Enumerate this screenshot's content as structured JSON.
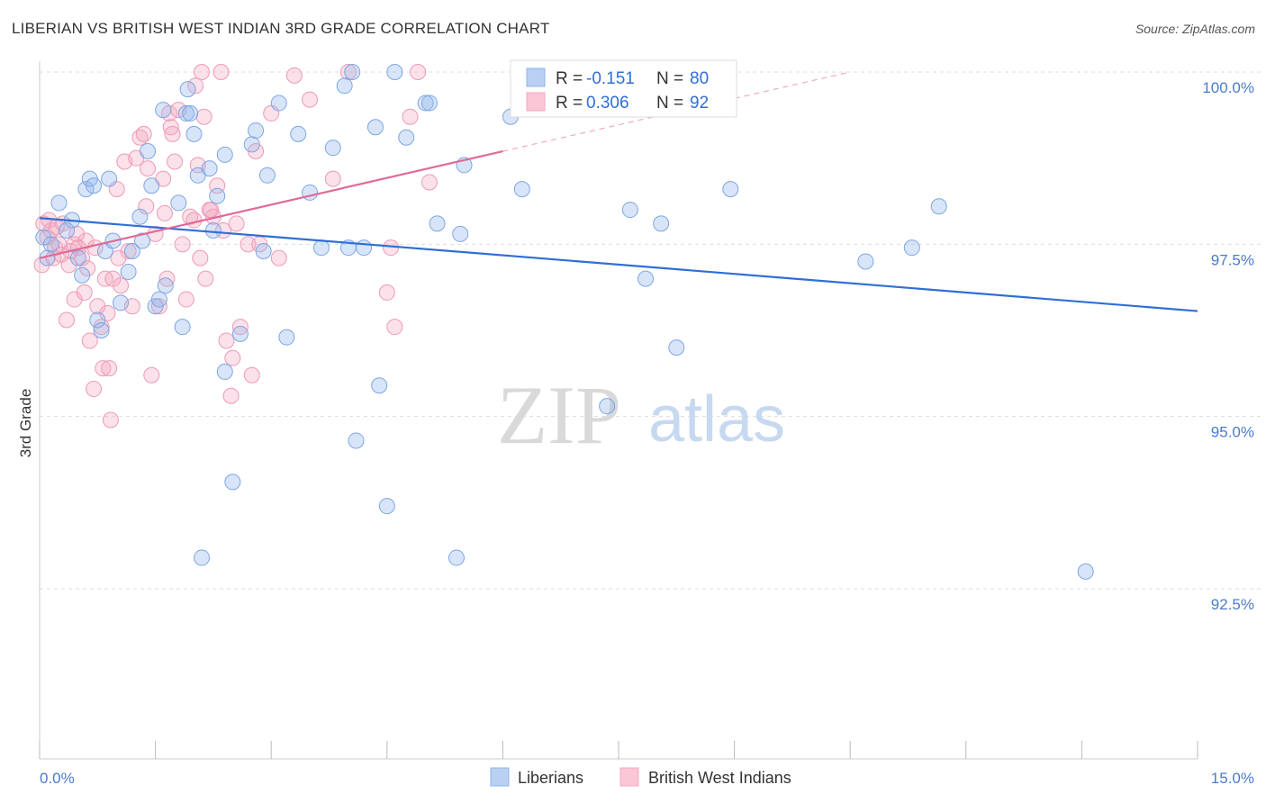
{
  "title": "LIBERIAN VS BRITISH WEST INDIAN 3RD GRADE CORRELATION CHART",
  "source": "Source: ZipAtlas.com",
  "watermark": {
    "zip": "ZIP",
    "atlas": "atlas"
  },
  "legend": {
    "rows": [
      {
        "r_label": "R =",
        "r_value": "-0.151",
        "n_label": "N =",
        "n_value": "80"
      },
      {
        "r_label": "R =",
        "r_value": "0.306",
        "n_label": "N =",
        "n_value": "92"
      }
    ]
  },
  "bottom_legend": [
    "Liberians",
    "British West Indians"
  ],
  "colors": {
    "blue": "#8fb4ea",
    "blue_line": "#2f6fd6",
    "pink": "#f4a8c0",
    "pink_line": "#e06a98",
    "tick_text": "#4a7bd0",
    "grid": "#dddddd"
  },
  "chart_data": {
    "type": "scatter",
    "title": "LIBERIAN VS BRITISH WEST INDIAN 3RD GRADE CORRELATION CHART",
    "xlabel": "",
    "ylabel": "3rd Grade",
    "xlim": [
      0.0,
      15.0
    ],
    "ylim": [
      90.0,
      100.2
    ],
    "x_tick_labels": [
      "0.0%",
      "15.0%"
    ],
    "y_ticks": [
      92.5,
      95.0,
      97.5,
      100.0
    ],
    "y_tick_labels": [
      "92.5%",
      "95.0%",
      "97.5%",
      "100.0%"
    ],
    "grid": "horizontal dashed",
    "series": [
      {
        "name": "Liberians",
        "color": "#8fb4ea",
        "trend": {
          "x": [
            0.0,
            15.0
          ],
          "y": [
            97.88,
            96.53
          ]
        },
        "points": [
          [
            0.05,
            97.6
          ],
          [
            0.1,
            97.3
          ],
          [
            0.15,
            97.5
          ],
          [
            0.25,
            98.1
          ],
          [
            0.35,
            97.7
          ],
          [
            0.42,
            97.85
          ],
          [
            0.5,
            97.3
          ],
          [
            0.55,
            97.05
          ],
          [
            0.6,
            98.3
          ],
          [
            0.65,
            98.45
          ],
          [
            0.7,
            98.35
          ],
          [
            0.75,
            96.4
          ],
          [
            0.8,
            96.25
          ],
          [
            0.85,
            97.4
          ],
          [
            0.9,
            98.45
          ],
          [
            0.95,
            97.55
          ],
          [
            1.05,
            96.65
          ],
          [
            1.15,
            97.1
          ],
          [
            1.2,
            97.4
          ],
          [
            1.3,
            97.9
          ],
          [
            1.33,
            97.55
          ],
          [
            1.4,
            98.85
          ],
          [
            1.45,
            98.35
          ],
          [
            1.5,
            96.6
          ],
          [
            1.55,
            96.7
          ],
          [
            1.6,
            99.45
          ],
          [
            1.63,
            96.9
          ],
          [
            1.8,
            98.1
          ],
          [
            1.85,
            96.3
          ],
          [
            1.9,
            99.4
          ],
          [
            1.92,
            99.75
          ],
          [
            1.95,
            99.4
          ],
          [
            2.0,
            99.1
          ],
          [
            2.05,
            98.5
          ],
          [
            2.1,
            92.95
          ],
          [
            2.2,
            98.6
          ],
          [
            2.25,
            97.7
          ],
          [
            2.3,
            98.2
          ],
          [
            2.4,
            95.65
          ],
          [
            2.4,
            98.8
          ],
          [
            2.5,
            94.05
          ],
          [
            2.6,
            96.2
          ],
          [
            2.75,
            98.95
          ],
          [
            2.8,
            99.15
          ],
          [
            2.9,
            97.4
          ],
          [
            2.95,
            98.5
          ],
          [
            3.1,
            99.55
          ],
          [
            3.2,
            96.15
          ],
          [
            3.35,
            99.1
          ],
          [
            3.5,
            98.25
          ],
          [
            3.65,
            97.45
          ],
          [
            3.8,
            98.9
          ],
          [
            3.95,
            99.8
          ],
          [
            4.0,
            97.45
          ],
          [
            4.05,
            100.0
          ],
          [
            4.1,
            94.65
          ],
          [
            4.2,
            97.45
          ],
          [
            4.35,
            99.2
          ],
          [
            4.4,
            95.45
          ],
          [
            4.5,
            93.7
          ],
          [
            4.6,
            100.0
          ],
          [
            4.75,
            99.05
          ],
          [
            5.0,
            99.55
          ],
          [
            5.05,
            99.55
          ],
          [
            5.15,
            97.8
          ],
          [
            5.4,
            92.95
          ],
          [
            5.45,
            97.65
          ],
          [
            5.5,
            98.65
          ],
          [
            6.1,
            99.35
          ],
          [
            7.35,
            95.15
          ],
          [
            7.65,
            98.0
          ],
          [
            7.85,
            97.0
          ],
          [
            8.05,
            97.8
          ],
          [
            8.25,
            96.0
          ],
          [
            8.95,
            98.3
          ],
          [
            10.7,
            97.25
          ],
          [
            11.3,
            97.45
          ],
          [
            11.65,
            98.05
          ],
          [
            13.55,
            92.75
          ],
          [
            6.25,
            98.3
          ]
        ]
      },
      {
        "name": "British West Indians",
        "color": "#f4a8c0",
        "trend": {
          "x": [
            0.0,
            6.0
          ],
          "y": [
            97.3,
            98.85
          ]
        },
        "trend_dashed": {
          "x": [
            6.0,
            10.5
          ],
          "y": [
            98.85,
            100.0
          ]
        },
        "points": [
          [
            0.03,
            97.2
          ],
          [
            0.05,
            97.8
          ],
          [
            0.1,
            97.6
          ],
          [
            0.15,
            97.7
          ],
          [
            0.18,
            97.3
          ],
          [
            0.2,
            97.45
          ],
          [
            0.25,
            97.5
          ],
          [
            0.3,
            97.8
          ],
          [
            0.35,
            96.4
          ],
          [
            0.4,
            97.4
          ],
          [
            0.45,
            97.5
          ],
          [
            0.45,
            96.7
          ],
          [
            0.5,
            97.45
          ],
          [
            0.55,
            97.3
          ],
          [
            0.58,
            96.8
          ],
          [
            0.6,
            97.55
          ],
          [
            0.65,
            96.1
          ],
          [
            0.7,
            95.4
          ],
          [
            0.75,
            96.6
          ],
          [
            0.8,
            96.3
          ],
          [
            0.82,
            95.7
          ],
          [
            0.85,
            97.0
          ],
          [
            0.88,
            96.5
          ],
          [
            0.9,
            95.7
          ],
          [
            0.92,
            94.95
          ],
          [
            0.95,
            97.0
          ],
          [
            1.0,
            98.3
          ],
          [
            1.05,
            96.9
          ],
          [
            1.1,
            98.7
          ],
          [
            1.15,
            97.4
          ],
          [
            1.2,
            96.6
          ],
          [
            1.25,
            98.75
          ],
          [
            1.3,
            99.05
          ],
          [
            1.35,
            99.1
          ],
          [
            1.4,
            98.6
          ],
          [
            1.45,
            95.6
          ],
          [
            1.5,
            97.65
          ],
          [
            1.55,
            96.6
          ],
          [
            1.6,
            98.45
          ],
          [
            1.65,
            97.0
          ],
          [
            1.68,
            99.4
          ],
          [
            1.7,
            99.2
          ],
          [
            1.72,
            99.1
          ],
          [
            1.75,
            98.7
          ],
          [
            1.8,
            99.45
          ],
          [
            1.85,
            97.5
          ],
          [
            1.9,
            96.7
          ],
          [
            1.95,
            97.9
          ],
          [
            2.0,
            97.85
          ],
          [
            2.02,
            99.8
          ],
          [
            2.05,
            98.65
          ],
          [
            2.08,
            97.3
          ],
          [
            2.1,
            100.0
          ],
          [
            2.13,
            99.35
          ],
          [
            2.15,
            97.0
          ],
          [
            2.2,
            98.0
          ],
          [
            2.25,
            97.9
          ],
          [
            2.3,
            98.35
          ],
          [
            2.35,
            100.0
          ],
          [
            2.38,
            97.7
          ],
          [
            2.42,
            96.1
          ],
          [
            2.48,
            95.3
          ],
          [
            2.5,
            95.85
          ],
          [
            2.55,
            97.8
          ],
          [
            2.6,
            96.3
          ],
          [
            2.7,
            97.5
          ],
          [
            2.75,
            95.6
          ],
          [
            2.8,
            98.85
          ],
          [
            2.85,
            97.5
          ],
          [
            3.0,
            99.4
          ],
          [
            3.1,
            97.3
          ],
          [
            3.3,
            99.95
          ],
          [
            3.5,
            99.6
          ],
          [
            3.8,
            98.45
          ],
          [
            4.0,
            100.0
          ],
          [
            4.5,
            96.8
          ],
          [
            4.55,
            97.45
          ],
          [
            4.6,
            96.3
          ],
          [
            4.8,
            99.35
          ],
          [
            4.9,
            100.0
          ],
          [
            5.05,
            98.4
          ],
          [
            0.12,
            97.85
          ],
          [
            0.22,
            97.75
          ],
          [
            0.28,
            97.35
          ],
          [
            0.38,
            97.2
          ],
          [
            0.48,
            97.65
          ],
          [
            0.62,
            97.15
          ],
          [
            0.72,
            97.45
          ],
          [
            1.02,
            97.3
          ],
          [
            1.38,
            98.05
          ],
          [
            1.62,
            97.95
          ],
          [
            2.22,
            98.0
          ]
        ]
      }
    ]
  }
}
